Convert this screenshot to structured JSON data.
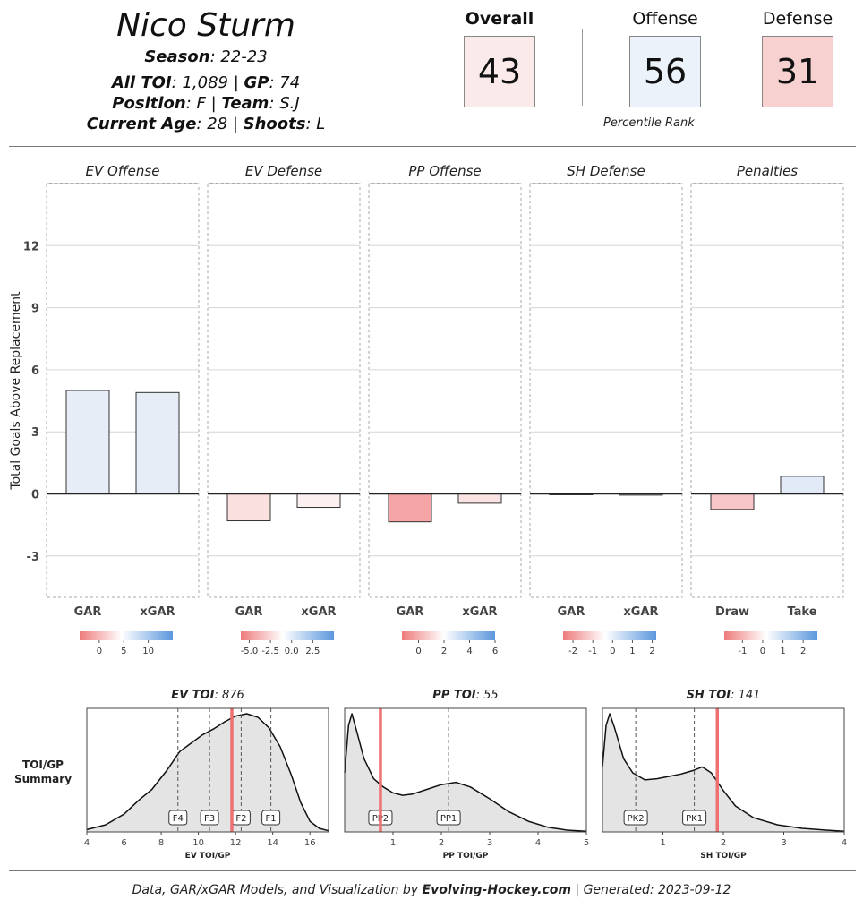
{
  "header": {
    "player_name": "Nico Sturm",
    "season_label": "Season",
    "season_value": ": 22-23",
    "toi_label": "All TOI",
    "toi_value": ": 1,089 | ",
    "gp_label": "GP",
    "gp_value": ": 74",
    "position_label": "Position",
    "position_value": ": F | ",
    "team_label": "Team",
    "team_value": ": S.J",
    "age_label": "Current Age",
    "age_value": ": 28 | ",
    "shoots_label": "Shoots",
    "shoots_value": ": L"
  },
  "scores": {
    "overall_label": "Overall",
    "overall_value": "43",
    "offense_label": "Offense",
    "offense_value": "56",
    "defense_label": "Defense",
    "defense_value": "31",
    "percentile_label": "Percentile Rank",
    "colors": {
      "overall": "#fbeaea",
      "offense": "#ecf2fa",
      "defense": "#f7d0d0"
    }
  },
  "chart_data": [
    {
      "type": "bar",
      "ylabel": "Total Goals Above Replacement",
      "ylim": [
        -5,
        15
      ],
      "yticks": [
        -3,
        0,
        3,
        6,
        9,
        12
      ],
      "panels": [
        {
          "title": "EV Offense",
          "categories": [
            "GAR",
            "xGAR"
          ],
          "values": [
            5.0,
            4.9
          ],
          "colors": [
            "#e6edf7",
            "#e6edf7"
          ],
          "legend_ticks": [
            "0",
            "5",
            "10"
          ],
          "legend_range": [
            -4,
            15
          ],
          "legend_tick_values": [
            0,
            5,
            10
          ]
        },
        {
          "title": "EV Defense",
          "categories": [
            "GAR",
            "xGAR"
          ],
          "values": [
            -1.3,
            -0.65
          ],
          "colors": [
            "#fbe0e0",
            "#fdf0f0"
          ],
          "legend_ticks": [
            "-5.0",
            "-2.5",
            "0.0",
            "2.5"
          ],
          "legend_range": [
            -6,
            5
          ],
          "legend_tick_values": [
            -5,
            -2.5,
            0,
            2.5
          ]
        },
        {
          "title": "PP Offense",
          "categories": [
            "GAR",
            "xGAR"
          ],
          "values": [
            -1.35,
            -0.45
          ],
          "colors": [
            "#f5a5a5",
            "#fbe3e3"
          ],
          "legend_ticks": [
            "0",
            "2",
            "4",
            "6"
          ],
          "legend_range": [
            -1.3,
            6
          ],
          "legend_tick_values": [
            0,
            2,
            4,
            6
          ]
        },
        {
          "title": "SH Defense",
          "categories": [
            "GAR",
            "xGAR"
          ],
          "values": [
            -0.04,
            -0.06
          ],
          "colors": [
            "#fdf3f3",
            "#fdf3f3"
          ],
          "legend_ticks": [
            "-2",
            "-1",
            "0",
            "1",
            "2"
          ],
          "legend_range": [
            -2.5,
            2.2
          ],
          "legend_tick_values": [
            -2,
            -1,
            0,
            1,
            2
          ]
        },
        {
          "title": "Penalties",
          "categories": [
            "Draw",
            "Take"
          ],
          "values": [
            -0.75,
            0.85
          ],
          "colors": [
            "#f8c6c6",
            "#e1eaf6"
          ],
          "legend_ticks": [
            "-1",
            "0",
            "1",
            "2"
          ],
          "legend_range": [
            -1.9,
            2.7
          ],
          "legend_tick_values": [
            -1,
            0,
            1,
            2
          ]
        }
      ]
    },
    {
      "type": "area",
      "summary_label_line1": "TOI/GP",
      "summary_label_line2": "Summary",
      "panels": [
        {
          "title_bold": "EV TOI",
          "title_rest": ": 876",
          "xlabel": "EV TOI/GP",
          "xlim": [
            4,
            17
          ],
          "xticks": [
            4,
            6,
            8,
            10,
            12,
            14,
            16
          ],
          "player_value": 11.8,
          "markers": [
            {
              "label": "F4",
              "x": 8.9
            },
            {
              "label": "F3",
              "x": 10.6
            },
            {
              "label": "F2",
              "x": 12.3
            },
            {
              "label": "F1",
              "x": 13.9
            }
          ],
          "density": [
            [
              4,
              0.02
            ],
            [
              5,
              0.06
            ],
            [
              6,
              0.15
            ],
            [
              6.8,
              0.27
            ],
            [
              7.5,
              0.36
            ],
            [
              8.3,
              0.52
            ],
            [
              9,
              0.68
            ],
            [
              9.6,
              0.75
            ],
            [
              10.2,
              0.82
            ],
            [
              10.8,
              0.87
            ],
            [
              11.4,
              0.93
            ],
            [
              12,
              0.98
            ],
            [
              12.6,
              1.0
            ],
            [
              13.2,
              0.97
            ],
            [
              13.8,
              0.88
            ],
            [
              14.4,
              0.72
            ],
            [
              15,
              0.48
            ],
            [
              15.5,
              0.25
            ],
            [
              16,
              0.09
            ],
            [
              16.5,
              0.03
            ],
            [
              17,
              0.01
            ]
          ]
        },
        {
          "title_bold": "PP TOI",
          "title_rest": ": 55",
          "xlabel": "PP TOI/GP",
          "xlim": [
            0,
            5
          ],
          "xticks": [
            1,
            2,
            3,
            4,
            5
          ],
          "player_value": 0.74,
          "markers": [
            {
              "label": "PP2",
              "x": 0.74
            },
            {
              "label": "PP1",
              "x": 2.15
            }
          ],
          "density": [
            [
              0,
              0.5
            ],
            [
              0.08,
              0.9
            ],
            [
              0.15,
              1.0
            ],
            [
              0.25,
              0.85
            ],
            [
              0.4,
              0.62
            ],
            [
              0.6,
              0.45
            ],
            [
              0.8,
              0.38
            ],
            [
              1.0,
              0.33
            ],
            [
              1.2,
              0.31
            ],
            [
              1.4,
              0.32
            ],
            [
              1.7,
              0.36
            ],
            [
              2.0,
              0.4
            ],
            [
              2.3,
              0.42
            ],
            [
              2.6,
              0.38
            ],
            [
              3.0,
              0.28
            ],
            [
              3.4,
              0.17
            ],
            [
              3.8,
              0.09
            ],
            [
              4.2,
              0.04
            ],
            [
              4.6,
              0.015
            ],
            [
              5,
              0.005
            ]
          ]
        },
        {
          "title_bold": "SH TOI",
          "title_rest": ": 141",
          "xlabel": "SH TOI/GP",
          "xlim": [
            0,
            4
          ],
          "xticks": [
            1,
            2,
            3,
            4
          ],
          "player_value": 1.9,
          "markers": [
            {
              "label": "PK2",
              "x": 0.55
            },
            {
              "label": "PK1",
              "x": 1.52
            }
          ],
          "density": [
            [
              0,
              0.55
            ],
            [
              0.06,
              0.9
            ],
            [
              0.12,
              1.0
            ],
            [
              0.2,
              0.88
            ],
            [
              0.35,
              0.62
            ],
            [
              0.5,
              0.5
            ],
            [
              0.7,
              0.44
            ],
            [
              0.9,
              0.45
            ],
            [
              1.1,
              0.47
            ],
            [
              1.3,
              0.49
            ],
            [
              1.5,
              0.52
            ],
            [
              1.65,
              0.55
            ],
            [
              1.8,
              0.5
            ],
            [
              2.0,
              0.35
            ],
            [
              2.2,
              0.22
            ],
            [
              2.5,
              0.12
            ],
            [
              2.9,
              0.06
            ],
            [
              3.3,
              0.03
            ],
            [
              3.7,
              0.015
            ],
            [
              4,
              0.005
            ]
          ]
        }
      ]
    }
  ],
  "footer": {
    "prefix": "Data, GAR/xGAR Models, and Visualization by ",
    "brand": "Evolving-Hockey.com",
    "suffix": " | Generated:  2023-09-12"
  }
}
